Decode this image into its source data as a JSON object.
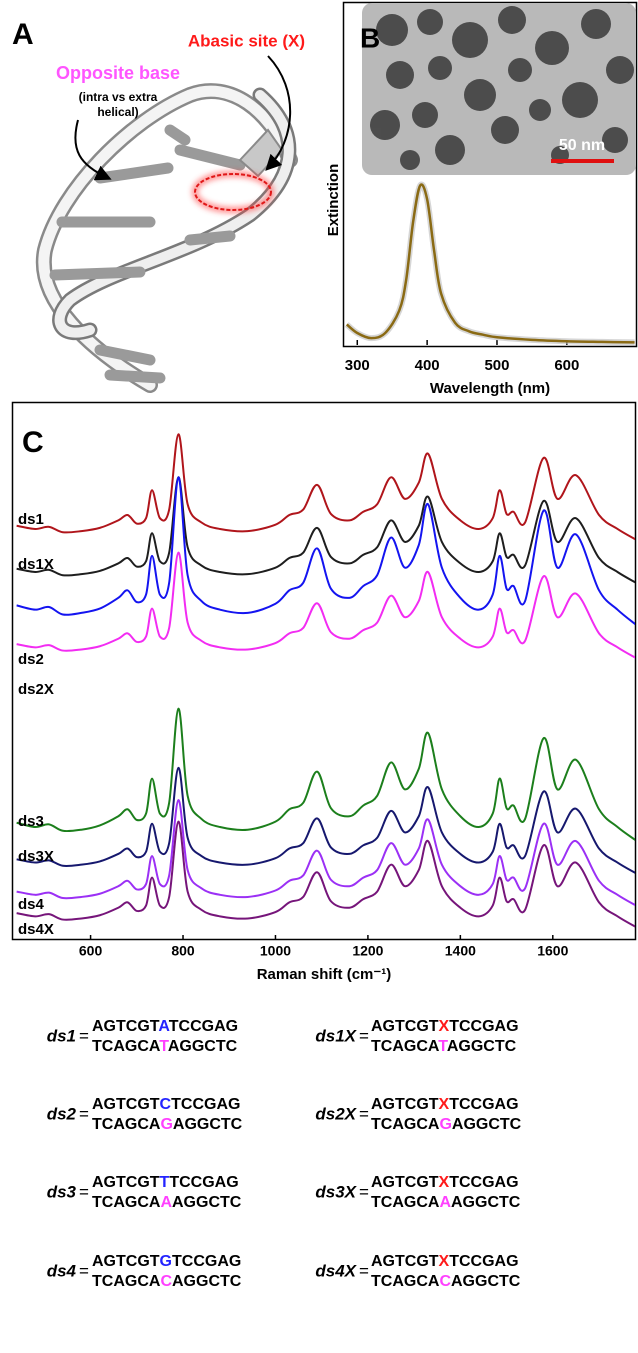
{
  "panel_a": {
    "label": "A",
    "abasic": "Abasic site (X)",
    "opposite": "Opposite base",
    "note": [
      "(intra vs extra",
      "helical)"
    ]
  },
  "chart_data": [
    {
      "type": "line",
      "label": "B",
      "scale_bar": "50 nm",
      "ylabel": "Extinction",
      "xlabel": "Wavelength (nm)",
      "x": [
        285,
        300,
        320,
        340,
        360,
        370,
        380,
        390,
        400,
        410,
        420,
        440,
        460,
        480,
        500,
        550,
        600,
        650,
        697
      ],
      "series": [
        {
          "color": "#8a6a14",
          "values": [
            0.12,
            0.07,
            0.04,
            0.07,
            0.2,
            0.38,
            0.72,
            0.93,
            0.85,
            0.55,
            0.3,
            0.13,
            0.08,
            0.06,
            0.045,
            0.03,
            0.022,
            0.018,
            0.015
          ]
        }
      ],
      "xlim": [
        281,
        699
      ],
      "ylim": [
        0,
        1.05
      ],
      "xticks": [
        300,
        400,
        500,
        600
      ]
    },
    {
      "type": "line",
      "label": "C",
      "xlabel": "Raman shift (cm⁻¹)",
      "x": [
        440,
        480,
        510,
        540,
        580,
        620,
        660,
        680,
        700,
        720,
        733,
        750,
        770,
        790,
        810,
        840,
        880,
        940,
        1000,
        1030,
        1060,
        1090,
        1120,
        1160,
        1190,
        1220,
        1250,
        1280,
        1310,
        1330,
        1360,
        1400,
        1440,
        1470,
        1485,
        1500,
        1515,
        1540,
        1580,
        1610,
        1650,
        1700,
        1740,
        1780
      ],
      "series": [
        {
          "name": "ds1",
          "color": "#b0151b",
          "values": [
            77,
            76.4,
            76.8,
            75.8,
            76,
            76.6,
            78,
            79,
            77.4,
            78.4,
            83.6,
            78.4,
            80,
            94,
            81,
            77.6,
            76.4,
            76,
            77.2,
            79,
            80,
            84.6,
            79.2,
            78,
            79.6,
            81,
            86,
            82,
            85,
            90.4,
            82,
            78,
            76.4,
            78.4,
            83.6,
            79.2,
            79.6,
            77.6,
            89.6,
            82,
            86.4,
            79,
            76.4,
            74.4
          ]
        },
        {
          "name": "ds1X",
          "color": "#1e1e1e",
          "values": [
            69,
            68.4,
            68.8,
            67.8,
            68,
            68.6,
            70,
            71,
            69.4,
            70.4,
            75.6,
            70.4,
            72,
            86,
            73,
            69.6,
            68.4,
            68,
            69.2,
            71,
            72,
            76.6,
            71.2,
            70,
            71.6,
            73,
            78,
            74,
            77,
            82.4,
            74,
            70,
            68.4,
            70.4,
            75.6,
            71.2,
            71.6,
            69.6,
            81.6,
            74,
            78.4,
            71,
            68.4,
            66.4
          ]
        },
        {
          "name": "ds2",
          "color": "#1414f0",
          "values": [
            62.2,
            61.4,
            61.9,
            60.5,
            60.8,
            61.6,
            63.6,
            65,
            62.8,
            64.2,
            71.4,
            64.2,
            66.4,
            86,
            67.8,
            63,
            61.4,
            60.8,
            62.5,
            65,
            66.4,
            72.8,
            65.3,
            63.6,
            65.8,
            67.8,
            74.8,
            69.2,
            73.4,
            81,
            69.2,
            63.6,
            61.4,
            64.2,
            71.4,
            65.3,
            65.8,
            63,
            79.8,
            69.2,
            75.4,
            65,
            61.4,
            58.6
          ]
        },
        {
          "name": "ds2X",
          "color": "#f22cf2",
          "values": [
            55,
            54.4,
            54.8,
            53.8,
            54,
            54.6,
            56,
            57,
            55.4,
            56.4,
            61.6,
            56.4,
            58,
            72,
            59,
            55.6,
            54.4,
            54,
            55.2,
            57,
            58,
            62.6,
            57.2,
            56,
            57.6,
            59,
            64,
            60,
            63,
            68.4,
            60,
            56,
            54.4,
            56.4,
            61.6,
            57.2,
            57.6,
            55.6,
            67.6,
            60,
            64.4,
            57,
            54.4,
            52.4
          ]
        },
        {
          "name": "ds3",
          "color": "#1c7f1c",
          "values": [
            21.8,
            21,
            21.5,
            20.3,
            20.5,
            21.3,
            23,
            24.3,
            22.3,
            23.5,
            30,
            23.5,
            25.5,
            43,
            26.8,
            22.5,
            21,
            20.5,
            22,
            24.3,
            25.5,
            31.3,
            24.5,
            23,
            25,
            26.8,
            33,
            28,
            31.8,
            38.5,
            28,
            23,
            21,
            23.5,
            30,
            24.5,
            25,
            22.5,
            37.5,
            28,
            33.5,
            24.3,
            21,
            18.5
          ]
        },
        {
          "name": "ds3X",
          "color": "#16186e",
          "values": [
            15,
            14.4,
            14.8,
            13.8,
            14,
            14.6,
            16,
            17,
            15.4,
            16.4,
            21.6,
            16.4,
            18,
            32,
            19,
            15.6,
            14.4,
            14,
            15.2,
            17,
            18,
            22.6,
            17.2,
            16,
            17.6,
            19,
            24,
            20,
            23,
            28.4,
            20,
            16,
            14.4,
            16.4,
            21.6,
            17.2,
            17.6,
            15.6,
            27.6,
            20,
            24.4,
            17,
            14.4,
            12.4
          ]
        },
        {
          "name": "ds4",
          "color": "#9b30f5",
          "values": [
            9,
            8.4,
            8.8,
            7.8,
            8,
            8.6,
            10,
            11,
            9.4,
            10.4,
            15.6,
            10.4,
            12,
            26,
            13,
            9.6,
            8.4,
            8,
            9.2,
            11,
            12,
            16.6,
            11.2,
            10,
            11.6,
            13,
            18,
            14,
            17,
            22.4,
            14,
            10,
            8.4,
            10.4,
            15.6,
            11.2,
            11.6,
            9.6,
            21.6,
            14,
            18.4,
            11,
            8.4,
            6.4
          ]
        },
        {
          "name": "ds4X",
          "color": "#76157a",
          "values": [
            5,
            4.4,
            4.8,
            3.8,
            4,
            4.6,
            6,
            7,
            5.4,
            6.4,
            11.6,
            6.4,
            8,
            22,
            9,
            5.6,
            4.4,
            4,
            5.2,
            7,
            8,
            12.6,
            7.2,
            6,
            7.6,
            9,
            14,
            10,
            13,
            18.4,
            10,
            6,
            4.4,
            6.4,
            11.6,
            7.2,
            7.6,
            5.6,
            17.6,
            10,
            14.4,
            7,
            4.4,
            2.4
          ]
        }
      ],
      "xlim": [
        430,
        1780
      ],
      "ylim": [
        0,
        100
      ],
      "xticks": [
        600,
        800,
        1000,
        1200,
        1400,
        1600
      ]
    }
  ],
  "sequences": {
    "equals": "=",
    "bottom_color": "#ff40ff",
    "items": [
      {
        "name": "ds1",
        "top": [
          "AGTCGT",
          "A",
          "TCCGAG"
        ],
        "top_color": "#2424ff",
        "bottom": [
          "TCAGCA",
          "T",
          "AGGCTC"
        ]
      },
      {
        "name": "ds1X",
        "top": [
          "AGTCGT",
          "X",
          "TCCGAG"
        ],
        "top_color": "#ff1a1a",
        "bottom": [
          "TCAGCA",
          "T",
          "AGGCTC"
        ]
      },
      {
        "name": "ds2",
        "top": [
          "AGTCGT",
          "C",
          "TCCGAG"
        ],
        "top_color": "#2424ff",
        "bottom": [
          "TCAGCA",
          "G",
          "AGGCTC"
        ]
      },
      {
        "name": "ds2X",
        "top": [
          "AGTCGT",
          "X",
          "TCCGAG"
        ],
        "top_color": "#ff1a1a",
        "bottom": [
          "TCAGCA",
          "G",
          "AGGCTC"
        ]
      },
      {
        "name": "ds3",
        "top": [
          "AGTCGT",
          "T",
          "TCCGAG"
        ],
        "top_color": "#2424ff",
        "bottom": [
          "TCAGCA",
          "A",
          "AGGCTC"
        ]
      },
      {
        "name": "ds3X",
        "top": [
          "AGTCGT",
          "X",
          "TCCGAG"
        ],
        "top_color": "#ff1a1a",
        "bottom": [
          "TCAGCA",
          "A",
          "AGGCTC"
        ]
      },
      {
        "name": "ds4",
        "top": [
          "AGTCGT",
          "G",
          "TCCGAG"
        ],
        "top_color": "#2424ff",
        "bottom": [
          "TCAGCA",
          "C",
          "AGGCTC"
        ]
      },
      {
        "name": "ds4X",
        "top": [
          "AGTCGT",
          "X",
          "TCCGAG"
        ],
        "top_color": "#ff1a1a",
        "bottom": [
          "TCAGCA",
          "C",
          "AGGCTC"
        ]
      }
    ]
  }
}
